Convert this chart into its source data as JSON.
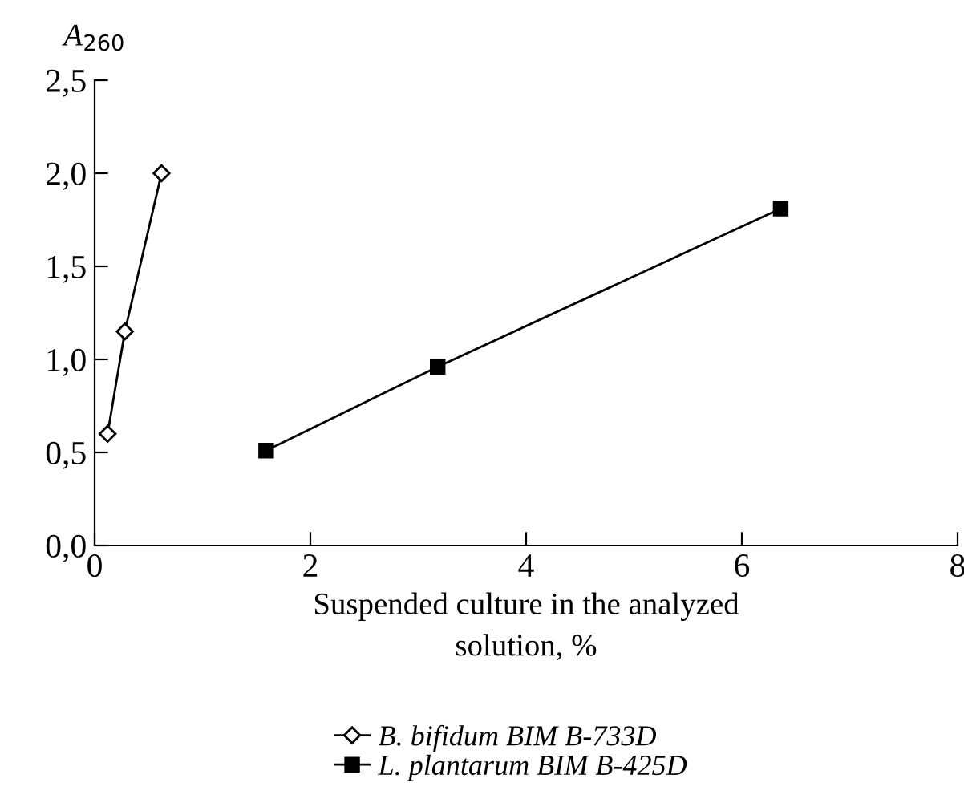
{
  "chart_data": {
    "type": "line",
    "ylabel": "A$_{260}$",
    "xlabel": "Suspended culture in the analyzed\nsolution, %",
    "xlim": [
      0,
      8
    ],
    "xticks": [
      0,
      2,
      4,
      6,
      8
    ],
    "ylim": [
      0,
      2.5
    ],
    "yticks": [
      {
        "value": 0,
        "label": "0,0"
      },
      {
        "value": 0.5,
        "label": "0,5"
      },
      {
        "value": 1.0,
        "label": "1,0"
      },
      {
        "value": 1.5,
        "label": "1,5"
      },
      {
        "value": 2.0,
        "label": "2,0"
      },
      {
        "value": 2.5,
        "label": "2,5"
      }
    ],
    "grid": false,
    "legend": "bottom",
    "series": [
      {
        "name": "B. bifidum BIM B-733D",
        "color": "#000000",
        "marker": "diamond",
        "x": [
          0.12,
          0.28,
          0.62
        ],
        "values": [
          0.6,
          1.15,
          2.0
        ]
      },
      {
        "name": "L. plantarum BIM B-425D",
        "color": "#000000",
        "marker": "square",
        "x": [
          1.59,
          3.18,
          6.36
        ],
        "values": [
          0.51,
          0.96,
          1.81
        ]
      }
    ]
  }
}
